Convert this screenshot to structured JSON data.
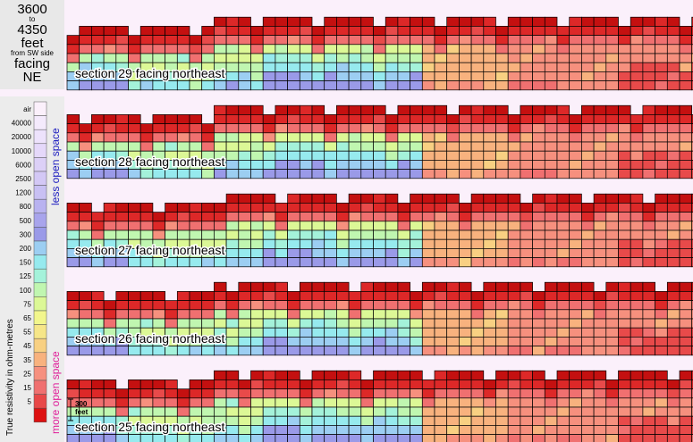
{
  "header": {
    "line1": "3600",
    "line2": "to",
    "line3": "4350",
    "line4": "feet",
    "line5": "from SW side",
    "line6": "facing",
    "line7": "NE"
  },
  "legend": {
    "title": "True resistivity in ohm-metres",
    "top_note": "less open space",
    "bottom_note": "more open space",
    "top_note_color": "#2020c0",
    "bottom_note_color": "#e0209a",
    "levels": [
      {
        "label": "air",
        "color": "#fbf0fb"
      },
      {
        "label": "40000",
        "color": "#f4eafc"
      },
      {
        "label": "20000",
        "color": "#ede2fc"
      },
      {
        "label": "10000",
        "color": "#e5d8fa"
      },
      {
        "label": "6000",
        "color": "#dcd0f7"
      },
      {
        "label": "2500",
        "color": "#d3c8f5"
      },
      {
        "label": "1200",
        "color": "#c8c0f3"
      },
      {
        "label": "800",
        "color": "#b8b2f0"
      },
      {
        "label": "500",
        "color": "#a8a4ec"
      },
      {
        "label": "300",
        "color": "#9a9ae8"
      },
      {
        "label": "200",
        "color": "#9ccef2"
      },
      {
        "label": "150",
        "color": "#96eaee"
      },
      {
        "label": "125",
        "color": "#a4f2da"
      },
      {
        "label": "100",
        "color": "#c0f6b0"
      },
      {
        "label": "75",
        "color": "#dcf896"
      },
      {
        "label": "65",
        "color": "#f2f68c"
      },
      {
        "label": "55",
        "color": "#f6e688"
      },
      {
        "label": "45",
        "color": "#f8d082"
      },
      {
        "label": "35",
        "color": "#f8b27e"
      },
      {
        "label": "25",
        "color": "#f6907e"
      },
      {
        "label": "15",
        "color": "#f07070"
      },
      {
        "label": "5",
        "color": "#e84848"
      },
      {
        "label": "",
        "color": "#dd1010"
      }
    ]
  },
  "scale_bar": {
    "line1": "300",
    "line2": "feet"
  },
  "chart_data": {
    "type": "heatmap",
    "sections": [
      {
        "label": "section 29 facing northeast"
      },
      {
        "label": "section 28 facing northeast"
      },
      {
        "label": "section 27 facing northeast"
      },
      {
        "label": "section 26 facing northeast"
      },
      {
        "label": "section 25 facing northeast"
      }
    ]
  }
}
